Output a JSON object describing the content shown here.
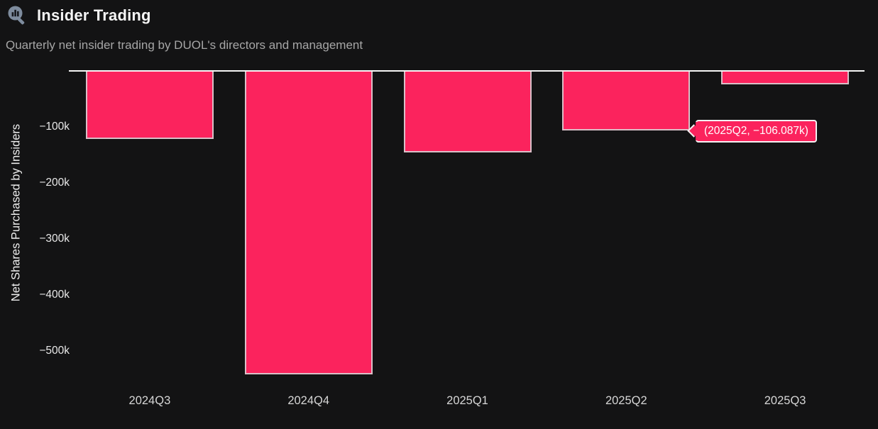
{
  "header": {
    "title": "Insider Trading",
    "subtitle": "Quarterly net insider trading by DUOL's directors and management",
    "icon": "magnifying-glass-chart-icon"
  },
  "colors": {
    "background": "#131314",
    "bar_fill": "#fb235d",
    "bar_border": "#d9bfc7",
    "zero_line": "#f7f7f7",
    "tick_label": "#e8e8e8",
    "x_label": "#d6d6d6",
    "title": "#f5f5f5",
    "subtitle": "#a6a6a6",
    "icon": "#7e8c9e",
    "tooltip_bg": "#fb235d",
    "tooltip_border": "#f2f2f2",
    "tooltip_text": "#ffffff"
  },
  "chart_data": {
    "type": "bar",
    "title": "Insider Trading",
    "subtitle": "Quarterly net insider trading by DUOL's directors and management",
    "categories": [
      "2024Q3",
      "2024Q4",
      "2025Q1",
      "2025Q2",
      "2025Q3"
    ],
    "values": [
      -121500,
      -542000,
      -145500,
      -106087,
      -24000
    ],
    "xlabel": "",
    "ylabel": "Net Shares Purchased by Insiders",
    "ylim": [
      -560000,
      0
    ],
    "yticks": [
      -100000,
      -200000,
      -300000,
      -400000,
      -500000
    ],
    "ytick_labels": [
      "−100k",
      "−200k",
      "−300k",
      "−400k",
      "−500k"
    ],
    "grid": false,
    "legend": false,
    "bar_color": "#fb235d",
    "annotations": [
      {
        "category": "2025Q2",
        "label": "(2025Q2, −106.087k)"
      }
    ]
  },
  "tooltip": {
    "text": "(2025Q2, −106.087k)",
    "category": "2025Q2",
    "value_display": "−106.087k"
  }
}
